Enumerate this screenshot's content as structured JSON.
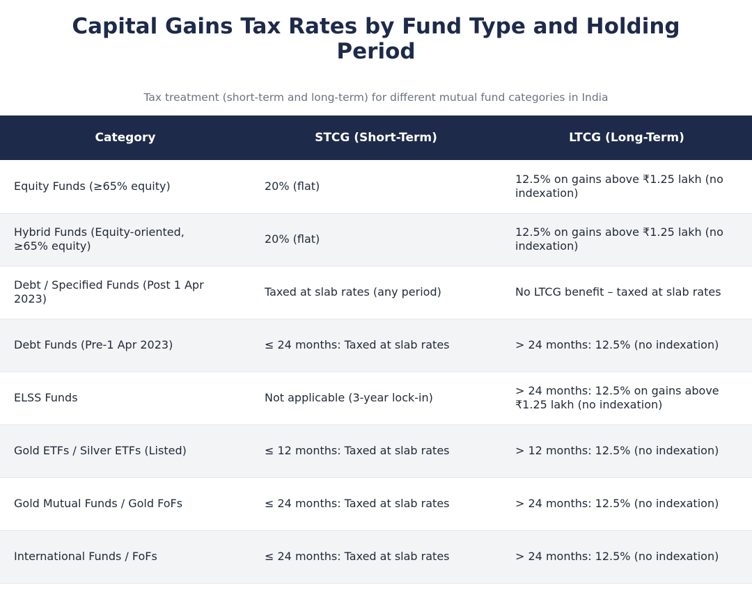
{
  "title": "Capital Gains Tax Rates by Fund Type and Holding Period",
  "subtitle": "Tax treatment (short-term and long-term) for different mutual fund categories in India",
  "table": {
    "headers": [
      "Category",
      "STCG (Short-Term)",
      "LTCG (Long-Term)"
    ],
    "rows": [
      [
        "Equity Funds (≥65% equity)",
        "20% (flat)",
        "12.5% on gains above ₹1.25 lakh (no indexation)"
      ],
      [
        "Hybrid Funds (Equity-oriented, ≥65% equity)",
        "20% (flat)",
        "12.5% on gains above ₹1.25 lakh (no indexation)"
      ],
      [
        "Debt / Specified Funds (Post 1 Apr 2023)",
        "Taxed at slab rates (any period)",
        "No LTCG benefit – taxed at slab rates"
      ],
      [
        "Debt Funds (Pre-1 Apr 2023)",
        "≤ 24 months: Taxed at slab rates",
        "> 24 months: 12.5% (no indexation)"
      ],
      [
        "ELSS Funds",
        "Not applicable (3-year lock-in)",
        "> 24 months: 12.5% on gains above ₹1.25 lakh (no indexation)"
      ],
      [
        "Gold ETFs / Silver ETFs (Listed)",
        "≤ 12 months: Taxed at slab rates",
        "> 12 months: 12.5% (no indexation)"
      ],
      [
        "Gold Mutual Funds / Gold FoFs",
        "≤ 24 months: Taxed at slab rates",
        "> 24 months: 12.5% (no indexation)"
      ],
      [
        "International Funds / FoFs",
        "≤ 24 months: Taxed at slab rates",
        "> 24 months: 12.5% (no indexation)"
      ]
    ]
  },
  "colors": {
    "header_bg": "#1e2a4a",
    "title": "#1e2a4a",
    "subtitle": "#6b7280",
    "row_alt": "#f3f4f6"
  }
}
